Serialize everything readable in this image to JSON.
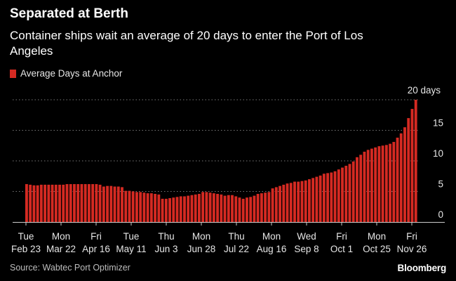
{
  "header": {
    "title": "Separated at Berth",
    "subtitle": "Container ships wait an average of 20 days to enter the Port of Los Angeles"
  },
  "legend": {
    "label": "Average Days at Anchor"
  },
  "footer": {
    "source": "Source: Wabtec Port Optimizer",
    "brand": "Bloomberg"
  },
  "colors": {
    "bar": "#d52a22",
    "grid": "#777777",
    "axis": "#cccccc",
    "background": "#000000"
  },
  "chart_data": {
    "type": "bar",
    "title": "Separated at Berth",
    "subtitle": "Container ships wait an average of 20 days to enter the Port of Los Angeles",
    "series": [
      {
        "name": "Average Days at Anchor",
        "values": [
          6.2,
          6.1,
          6.0,
          6.0,
          6.1,
          6.1,
          6.1,
          6.1,
          6.1,
          6.1,
          6.1,
          6.2,
          6.2,
          6.2,
          6.2,
          6.2,
          6.2,
          6.2,
          6.2,
          6.2,
          6.1,
          5.8,
          5.9,
          5.9,
          5.8,
          5.8,
          5.7,
          5.1,
          5.1,
          5.0,
          4.9,
          4.9,
          4.8,
          4.7,
          4.7,
          4.6,
          4.5,
          3.8,
          3.8,
          3.9,
          4.0,
          4.1,
          4.2,
          4.2,
          4.3,
          4.4,
          4.5,
          4.6,
          4.9,
          4.9,
          4.8,
          4.7,
          4.6,
          4.5,
          4.3,
          4.4,
          4.4,
          4.2,
          4.0,
          3.8,
          4.0,
          4.1,
          4.3,
          4.6,
          4.7,
          4.8,
          4.9,
          5.5,
          5.7,
          5.9,
          6.1,
          6.3,
          6.4,
          6.6,
          6.6,
          6.7,
          6.8,
          7.0,
          7.2,
          7.4,
          7.6,
          7.9,
          8.0,
          8.1,
          8.3,
          8.6,
          8.9,
          9.2,
          9.5,
          9.9,
          10.6,
          11.0,
          11.5,
          11.8,
          12.0,
          12.2,
          12.4,
          12.5,
          12.6,
          12.8,
          13.1,
          13.8,
          14.5,
          15.5,
          17.0,
          18.5,
          20.0
        ]
      }
    ],
    "x_tick_labels": [
      {
        "day": "Tue",
        "date": "Feb 23"
      },
      {
        "day": "Mon",
        "date": "Mar 22"
      },
      {
        "day": "Fri",
        "date": "Apr 16"
      },
      {
        "day": "Tue",
        "date": "May 11"
      },
      {
        "day": "Thu",
        "date": "Jun 3"
      },
      {
        "day": "Mon",
        "date": "Jun 28"
      },
      {
        "day": "Thu",
        "date": "Jul 22"
      },
      {
        "day": "Mon",
        "date": "Aug 16"
      },
      {
        "day": "Wed",
        "date": "Sep 8"
      },
      {
        "day": "Fri",
        "date": "Oct 1"
      },
      {
        "day": "Mon",
        "date": "Oct 25"
      },
      {
        "day": "Fri",
        "date": "Nov 26"
      }
    ],
    "y_ticks": [
      0,
      5,
      10,
      15,
      20
    ],
    "y_tick_labels": [
      "0",
      "5",
      "10",
      "15",
      "20 days"
    ],
    "ylim": [
      0,
      20
    ],
    "grid": true,
    "legend_position": "top-left",
    "y_axis_position": "right"
  }
}
